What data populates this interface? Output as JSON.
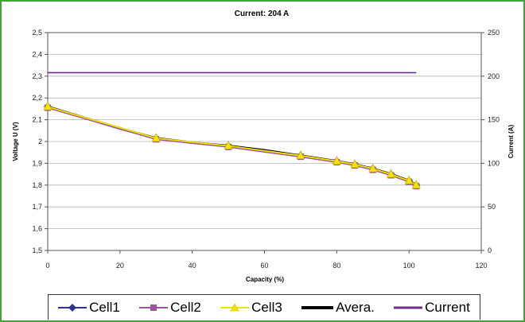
{
  "chart_data": {
    "type": "line",
    "title": "Current: 204 A",
    "xlabel": "Capacity (%)",
    "ylabel": "Voltage U (V)",
    "y2label": "Current (A)",
    "xlim": [
      0,
      120
    ],
    "ylim": [
      1.5,
      2.5
    ],
    "y2lim": [
      0,
      250
    ],
    "x_ticks": [
      "0",
      "20",
      "40",
      "60",
      "80",
      "100",
      "120"
    ],
    "y_ticks": [
      "1,5",
      "1,6",
      "1,7",
      "1,8",
      "1,9",
      "2",
      "2,1",
      "2,2",
      "2,3",
      "2,4",
      "2,5"
    ],
    "y2_ticks": [
      "0",
      "50",
      "100",
      "150",
      "200",
      "250"
    ],
    "grid": "horizontal",
    "legend_position": "bottom",
    "series": [
      {
        "name": "Cell1",
        "axis": "left",
        "color": "#2e3192",
        "marker": "diamond",
        "x": [
          0,
          30,
          50,
          70,
          80,
          85,
          90,
          95,
          100,
          102
        ],
        "y": [
          2.16,
          2.015,
          1.98,
          1.935,
          1.91,
          1.895,
          1.875,
          1.85,
          1.82,
          1.8
        ]
      },
      {
        "name": "Cell2",
        "axis": "left",
        "color": "#a0519f",
        "marker": "square",
        "x": [
          0,
          30,
          50,
          70,
          80,
          85,
          90,
          95,
          100,
          102
        ],
        "y": [
          2.155,
          2.01,
          1.975,
          1.93,
          1.905,
          1.89,
          1.87,
          1.845,
          1.815,
          1.795
        ]
      },
      {
        "name": "Cell3",
        "axis": "left",
        "color": "#f2e600",
        "marker": "triangle",
        "x": [
          0,
          30,
          50,
          70,
          80,
          85,
          90,
          95,
          100,
          102
        ],
        "y": [
          2.16,
          2.015,
          1.98,
          1.935,
          1.91,
          1.895,
          1.875,
          1.85,
          1.82,
          1.8
        ]
      },
      {
        "name": "Avera.",
        "axis": "left",
        "color": "#000000",
        "marker": "none",
        "x": [
          0,
          10,
          20,
          30,
          40,
          50,
          60,
          70,
          80,
          85,
          90,
          95,
          100,
          102
        ],
        "y": [
          2.16,
          2.11,
          2.06,
          2.015,
          1.995,
          1.98,
          1.96,
          1.935,
          1.91,
          1.895,
          1.875,
          1.85,
          1.82,
          1.8
        ]
      },
      {
        "name": "Current",
        "axis": "right",
        "color": "#6a2c91",
        "marker": "none",
        "x": [
          0,
          102
        ],
        "y": [
          204,
          204
        ]
      }
    ]
  }
}
